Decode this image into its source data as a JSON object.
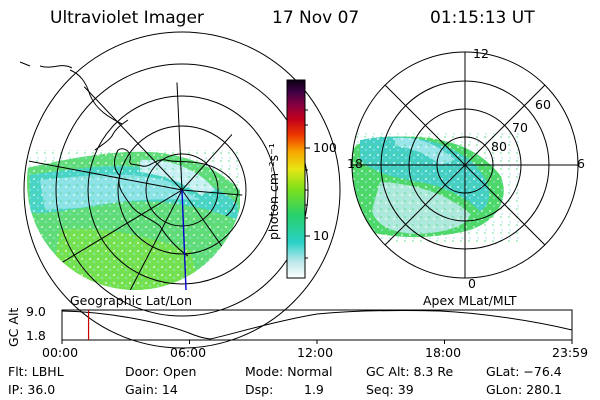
{
  "header": {
    "title": "Ultraviolet Imager",
    "date": "17 Nov 07",
    "time": "01:15:13 UT"
  },
  "left_panel": {
    "label": "Geographic Lat/Lon"
  },
  "right_panel": {
    "label": "Apex MLat/MLT",
    "mlt_labels": [
      "12",
      "18",
      "6",
      "0"
    ],
    "mlat_labels": [
      "60",
      "70",
      "80"
    ]
  },
  "colorbar": {
    "unit_label": "photon cm⁻²s⁻¹",
    "ticks": [
      "100",
      "10"
    ]
  },
  "altitude_plot": {
    "ylabel": "GC Alt",
    "ymax_label": "9.0",
    "ymin_label": "1.8",
    "x_ticks": [
      "00:00",
      "06:00",
      "12:00",
      "18:00",
      "23:59"
    ],
    "current_time_marker_hours": 1.25
  },
  "status": {
    "flt": "Flt: LBHL",
    "door": "Door: Open",
    "mode": "Mode: Normal",
    "gc_alt": "GC Alt: 8.3 Re",
    "glat": "GLat: −76.4",
    "ip": "IP: 36.0",
    "gain": "Gain: 14",
    "dsp_label": "Dsp:",
    "dsp_value": "1.9",
    "seq": "Seq: 39",
    "glon": "GLon: 280.1"
  },
  "colors": {
    "background": "#ffffff",
    "foreground": "#000000",
    "marker": "#cc0000",
    "meridian": "#0000cc"
  }
}
